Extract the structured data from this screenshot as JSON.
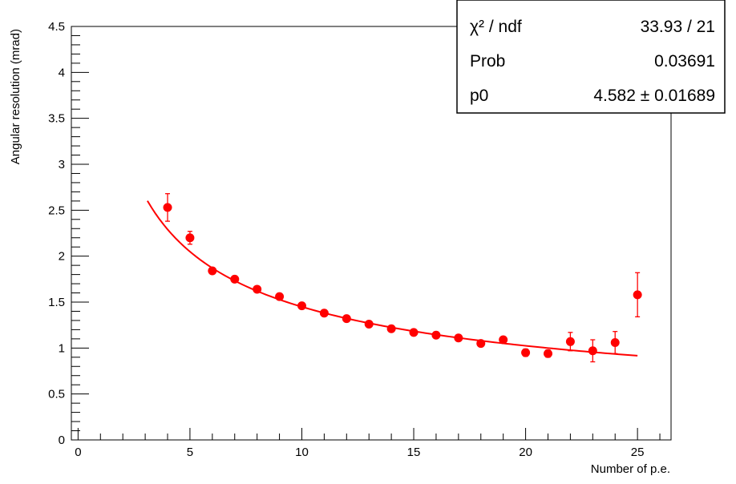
{
  "chart_data": {
    "type": "scatter",
    "xlabel": "Number of p.e.",
    "ylabel": "Angular resolution (mrad)",
    "xlim": [
      -0.3,
      26.5
    ],
    "ylim": [
      0,
      4.5
    ],
    "xticks": [
      "0",
      "5",
      "10",
      "15",
      "20",
      "25"
    ],
    "xtick_values": [
      0,
      5,
      10,
      15,
      20,
      25
    ],
    "yticks": [
      "0",
      "0.5",
      "1",
      "1.5",
      "2",
      "2.5",
      "3",
      "3.5",
      "4",
      "4.5"
    ],
    "ytick_values": [
      0,
      0.5,
      1,
      1.5,
      2,
      2.5,
      3,
      3.5,
      4,
      4.5
    ],
    "grid": false,
    "colors": {
      "points": "#ff0000",
      "fit": "#ff0000",
      "axes": "#000000"
    },
    "points": [
      {
        "x": 4,
        "y": 2.53,
        "err": 0.15
      },
      {
        "x": 5,
        "y": 2.2,
        "err": 0.07
      },
      {
        "x": 6,
        "y": 1.84,
        "err": 0.03
      },
      {
        "x": 7,
        "y": 1.75,
        "err": 0.03
      },
      {
        "x": 8,
        "y": 1.64,
        "err": 0.03
      },
      {
        "x": 9,
        "y": 1.56,
        "err": 0.03
      },
      {
        "x": 10,
        "y": 1.46,
        "err": 0.03
      },
      {
        "x": 11,
        "y": 1.38,
        "err": 0.03
      },
      {
        "x": 12,
        "y": 1.32,
        "err": 0.03
      },
      {
        "x": 13,
        "y": 1.26,
        "err": 0.03
      },
      {
        "x": 14,
        "y": 1.21,
        "err": 0.03
      },
      {
        "x": 15,
        "y": 1.17,
        "err": 0.03
      },
      {
        "x": 16,
        "y": 1.14,
        "err": 0.03
      },
      {
        "x": 17,
        "y": 1.11,
        "err": 0.03
      },
      {
        "x": 18,
        "y": 1.05,
        "err": 0.03
      },
      {
        "x": 19,
        "y": 1.09,
        "err": 0.03
      },
      {
        "x": 20,
        "y": 0.95,
        "err": 0.04
      },
      {
        "x": 21,
        "y": 0.94,
        "err": 0.04
      },
      {
        "x": 22,
        "y": 1.07,
        "err": 0.1
      },
      {
        "x": 23,
        "y": 0.97,
        "err": 0.12
      },
      {
        "x": 24,
        "y": 1.06,
        "err": 0.12
      },
      {
        "x": 25,
        "y": 1.58,
        "err": 0.24
      }
    ],
    "fit": {
      "form": "p0/sqrt(x)",
      "p0": 4.582,
      "x_range": [
        3.1,
        25
      ]
    },
    "stats": [
      {
        "label": "χ² / ndf",
        "value": "33.93 / 21"
      },
      {
        "label": "Prob",
        "value": "0.03691"
      },
      {
        "label": "p0",
        "value": "4.582 ± 0.01689"
      }
    ],
    "legend_position": "top-right"
  }
}
